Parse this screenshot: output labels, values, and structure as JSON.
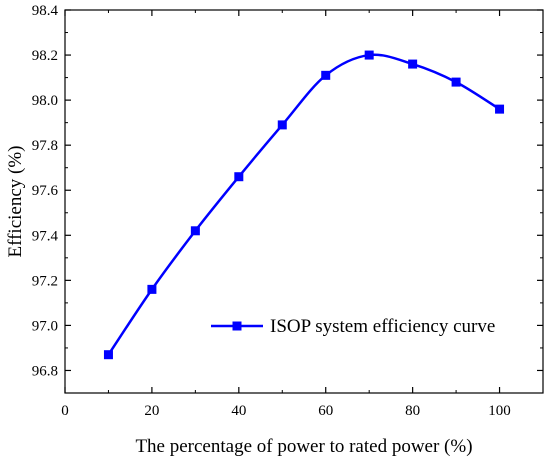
{
  "chart_data": {
    "type": "line",
    "title": "",
    "xlabel": "The percentage of power to rated power (%)",
    "ylabel": "Efficiency (%)",
    "xlim": [
      0,
      110
    ],
    "ylim": [
      96.7,
      98.4
    ],
    "xticks": [
      0,
      20,
      40,
      60,
      80,
      100
    ],
    "yticks": [
      96.8,
      97.0,
      97.2,
      97.4,
      97.6,
      97.8,
      98.0,
      98.2,
      98.4
    ],
    "xtick_labels": [
      "0",
      "20",
      "40",
      "60",
      "80",
      "100"
    ],
    "ytick_labels": [
      "96.8",
      "97.0",
      "97.2",
      "97.4",
      "97.6",
      "97.8",
      "98.0",
      "98.2",
      "98.4"
    ],
    "grid": false,
    "legend_position": "lower-right",
    "series": [
      {
        "name": "ISOP system efficiency curve",
        "color": "#0000ff",
        "marker": "square",
        "x": [
          10,
          20,
          30,
          40,
          50,
          60,
          70,
          80,
          90,
          100
        ],
        "y": [
          96.87,
          97.16,
          97.42,
          97.66,
          97.89,
          98.11,
          98.2,
          98.16,
          98.08,
          97.96
        ]
      }
    ]
  }
}
